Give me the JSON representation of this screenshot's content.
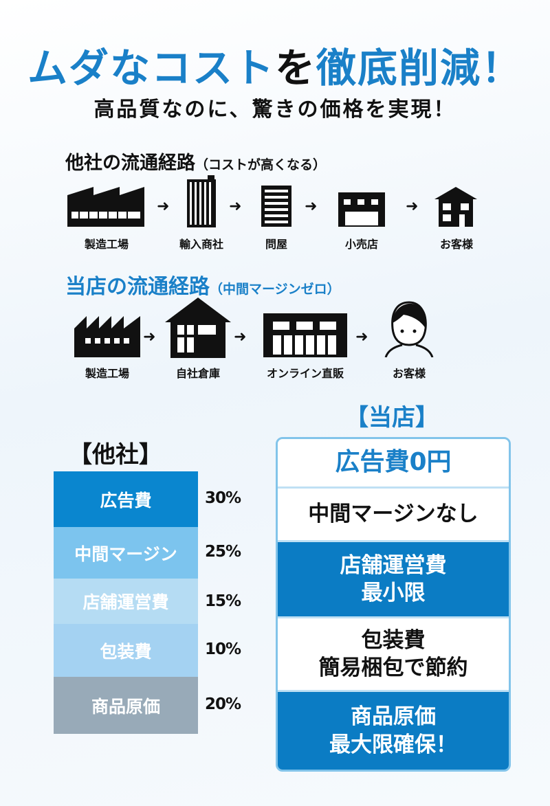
{
  "header": {
    "title_part1": "ムダなコスト",
    "title_part2": "を",
    "title_part3": "徹底削減！",
    "subtitle": "高品質なのに、驚きの価格を実現！"
  },
  "other_route": {
    "title": "他社の流通経路",
    "note": "（コストが高くなる）",
    "steps": [
      "製造工場",
      "輸入商社",
      "問屋",
      "小売店",
      "お客様"
    ],
    "icons": [
      "factory-icon",
      "tall-building-icon",
      "office-building-icon",
      "shop-icon",
      "house-icon"
    ]
  },
  "our_route": {
    "title": "当店の流通経路",
    "note": "（中間マージンゼロ）",
    "steps": [
      "製造工場",
      "自社倉庫",
      "オンライン直販",
      "お客様"
    ],
    "icons": [
      "factory-icon",
      "warehouse-icon",
      "storefront-icon",
      "customer-icon"
    ]
  },
  "comparison": {
    "others": {
      "heading": "【他社】",
      "items": [
        {
          "label": "広告費",
          "percent": "30%",
          "color": "#0a86cf"
        },
        {
          "label": "中間マージン",
          "percent": "25%",
          "color": "#7cc4ee"
        },
        {
          "label": "店舗運営費",
          "percent": "15%",
          "color": "#b5dcf3"
        },
        {
          "label": "包装費",
          "percent": "10%",
          "color": "#a4d2f2"
        },
        {
          "label": "商品原価",
          "percent": "20%",
          "color": "#98aab8"
        }
      ]
    },
    "ours": {
      "heading": "【当店】",
      "items": [
        {
          "line1": "広告費0円",
          "line2": ""
        },
        {
          "line1": "中間マージンなし",
          "line2": ""
        },
        {
          "line1": "店舗運営費",
          "line2": "最小限"
        },
        {
          "line1": "包装費",
          "line2": "簡易梱包で節約"
        },
        {
          "line1": "商品原価",
          "line2": "最大限確保！"
        }
      ]
    }
  },
  "colors": {
    "accent": "#1a80c8",
    "dark_blue": "#0b7cc4"
  }
}
